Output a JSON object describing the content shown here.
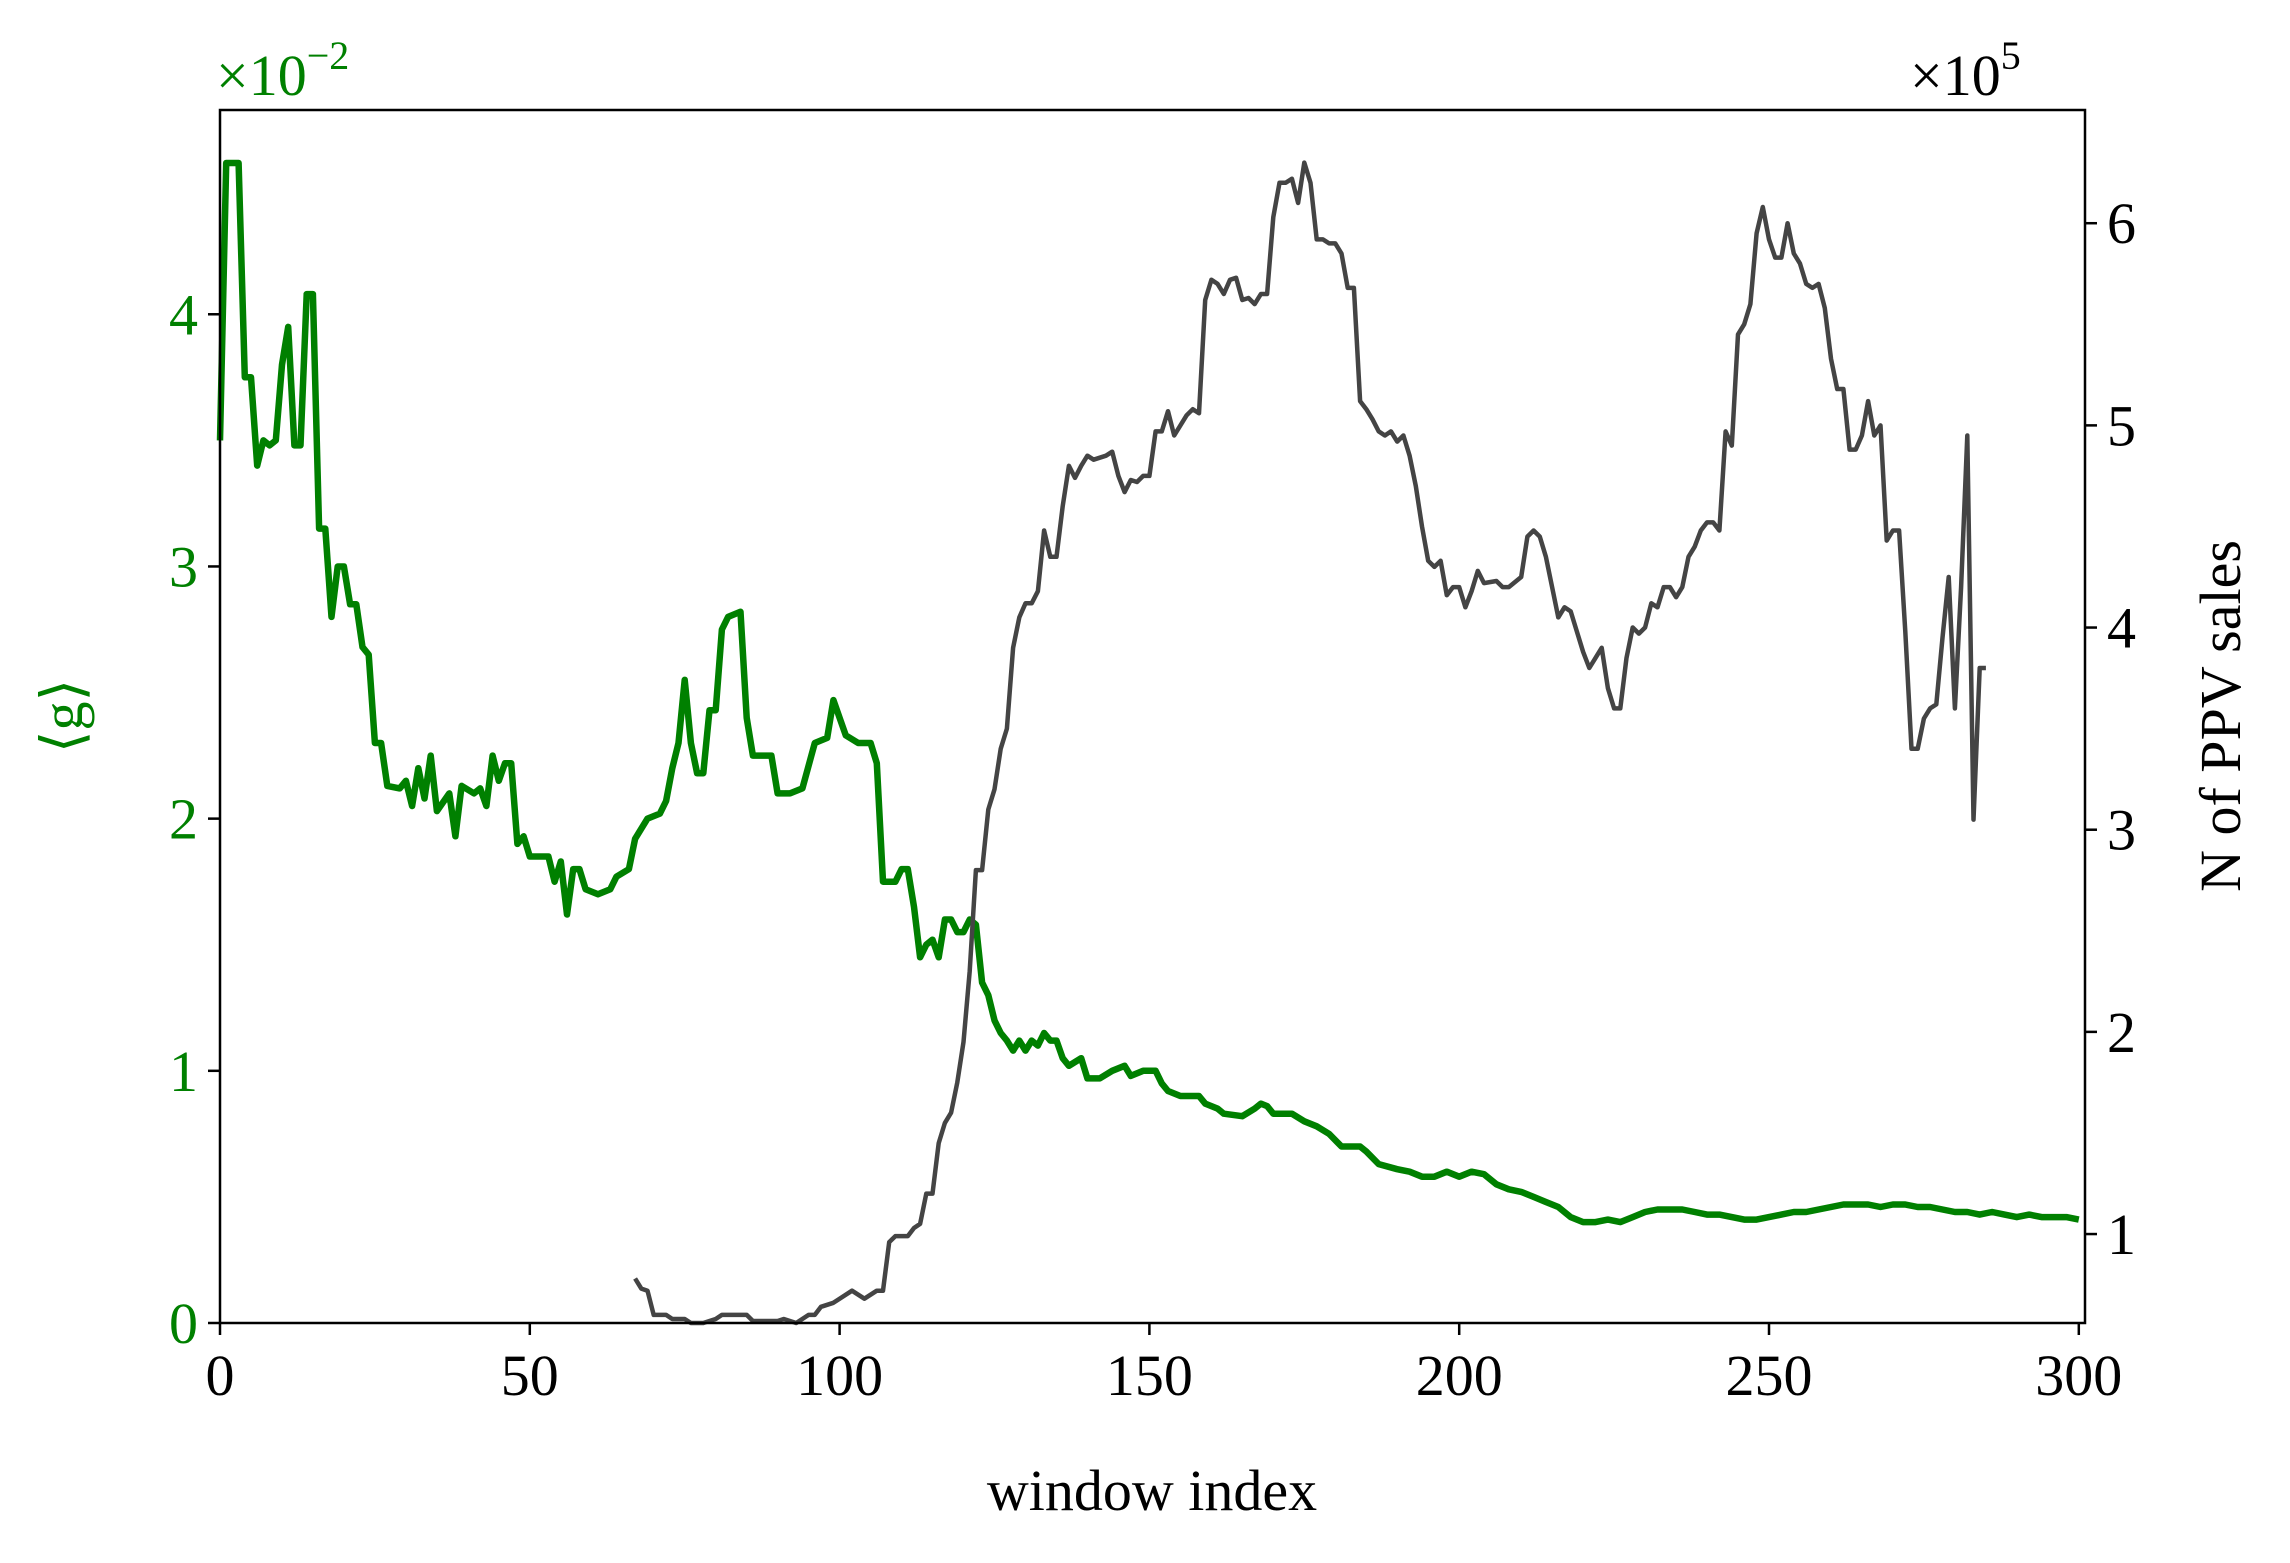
{
  "chart_data": {
    "type": "line",
    "xlabel": "window index",
    "ylabel": "⟨g⟩",
    "y2label": "N of PPV sales",
    "y_offset": {
      "base": "×10",
      "exponent": "−2"
    },
    "y2_offset": {
      "base": "×10",
      "exponent": "5"
    },
    "xlim": [
      0,
      301
    ],
    "xticks": [
      0,
      50,
      100,
      150,
      200,
      250,
      300
    ],
    "ylim": [
      0,
      4.81
    ],
    "yticks": [
      0,
      1,
      2,
      3,
      4
    ],
    "ycolor": "#008000",
    "y2lim": [
      0.56,
      6.56
    ],
    "y2ticks": [
      1,
      2,
      3,
      4,
      5,
      6
    ],
    "series": [
      {
        "color": "#008000",
        "axis": "y",
        "x": [
          0,
          1,
          2,
          3,
          4,
          5,
          6,
          7,
          8,
          9,
          10,
          11,
          12,
          13,
          14,
          15,
          16,
          17,
          18,
          19,
          20,
          21,
          22,
          23,
          24,
          25,
          26,
          27,
          29,
          30,
          31,
          32,
          33,
          34,
          35,
          37,
          38,
          39,
          41,
          42,
          43,
          44,
          45,
          46,
          47,
          48,
          49,
          50,
          53,
          54,
          55,
          56,
          57,
          58,
          59,
          61,
          63,
          64,
          66,
          67,
          69,
          71,
          72,
          73,
          74,
          75,
          76,
          77,
          78,
          79,
          80,
          81,
          82,
          84,
          85,
          86,
          88,
          89,
          90,
          92,
          94,
          96,
          98,
          99,
          100,
          101,
          103,
          105,
          106,
          107,
          108,
          109,
          110,
          111,
          112,
          113,
          114,
          115,
          116,
          117,
          118,
          119,
          120,
          121,
          122,
          123,
          124,
          125,
          126,
          127,
          128,
          129,
          130,
          131,
          132,
          133,
          134,
          135,
          136,
          137,
          139,
          140,
          142,
          144,
          146,
          147,
          149,
          151,
          152,
          153,
          155,
          158,
          159,
          161,
          162,
          165,
          167,
          168,
          169,
          170,
          173,
          175,
          177,
          179,
          181,
          184,
          185,
          187,
          190,
          192,
          194,
          196,
          198,
          200,
          202,
          204,
          206,
          208,
          210,
          212,
          214,
          216,
          218,
          220,
          222,
          224,
          226,
          228,
          230,
          232,
          234,
          236,
          238,
          240,
          242,
          244,
          246,
          248,
          250,
          252,
          254,
          256,
          258,
          260,
          262,
          264,
          266,
          268,
          270,
          272,
          274,
          276,
          278,
          280,
          282,
          284,
          286,
          288,
          290,
          292,
          294,
          296,
          298,
          300
        ],
        "values": [
          3.5,
          4.6,
          4.6,
          4.6,
          3.75,
          3.75,
          3.4,
          3.5,
          3.48,
          3.5,
          3.8,
          3.95,
          3.48,
          3.48,
          4.08,
          4.08,
          3.15,
          3.15,
          2.8,
          3.0,
          3.0,
          2.85,
          2.85,
          2.68,
          2.65,
          2.3,
          2.3,
          2.13,
          2.12,
          2.15,
          2.05,
          2.2,
          2.08,
          2.25,
          2.03,
          2.1,
          1.93,
          2.13,
          2.1,
          2.12,
          2.05,
          2.25,
          2.15,
          2.22,
          2.22,
          1.9,
          1.93,
          1.85,
          1.85,
          1.75,
          1.83,
          1.62,
          1.8,
          1.8,
          1.72,
          1.7,
          1.72,
          1.77,
          1.8,
          1.92,
          2.0,
          2.02,
          2.07,
          2.2,
          2.3,
          2.55,
          2.3,
          2.18,
          2.18,
          2.43,
          2.43,
          2.75,
          2.8,
          2.82,
          2.4,
          2.25,
          2.25,
          2.25,
          2.1,
          2.1,
          2.12,
          2.3,
          2.32,
          2.47,
          2.4,
          2.33,
          2.3,
          2.3,
          2.22,
          1.75,
          1.75,
          1.75,
          1.8,
          1.8,
          1.65,
          1.45,
          1.5,
          1.52,
          1.45,
          1.6,
          1.6,
          1.55,
          1.55,
          1.6,
          1.58,
          1.35,
          1.3,
          1.2,
          1.15,
          1.12,
          1.08,
          1.12,
          1.08,
          1.12,
          1.1,
          1.15,
          1.12,
          1.12,
          1.05,
          1.02,
          1.05,
          0.97,
          0.97,
          1.0,
          1.02,
          0.98,
          1.0,
          1.0,
          0.95,
          0.92,
          0.9,
          0.9,
          0.87,
          0.85,
          0.83,
          0.82,
          0.85,
          0.87,
          0.86,
          0.83,
          0.83,
          0.8,
          0.78,
          0.75,
          0.7,
          0.7,
          0.68,
          0.63,
          0.61,
          0.6,
          0.58,
          0.58,
          0.6,
          0.58,
          0.6,
          0.59,
          0.55,
          0.53,
          0.52,
          0.5,
          0.48,
          0.46,
          0.42,
          0.4,
          0.4,
          0.41,
          0.4,
          0.42,
          0.44,
          0.45,
          0.45,
          0.45,
          0.44,
          0.43,
          0.43,
          0.42,
          0.41,
          0.41,
          0.42,
          0.43,
          0.44,
          0.44,
          0.45,
          0.46,
          0.47,
          0.47,
          0.47,
          0.46,
          0.47,
          0.47,
          0.46,
          0.46,
          0.45,
          0.44,
          0.44,
          0.43,
          0.44,
          0.43,
          0.42,
          0.43,
          0.42,
          0.42,
          0.42,
          0.41
        ]
      },
      {
        "color": "#444444",
        "axis": "y2",
        "x": [
          67,
          68,
          69,
          70,
          72,
          73,
          75,
          76,
          78,
          80,
          81,
          83,
          85,
          86,
          88,
          90,
          91,
          93,
          95,
          96,
          97,
          99,
          100,
          102,
          103,
          104,
          105,
          106,
          107,
          108,
          109,
          111,
          112,
          113,
          114,
          115,
          116,
          117,
          118,
          119,
          120,
          121,
          122,
          123,
          124,
          125,
          126,
          127,
          128,
          129,
          130,
          131,
          132,
          133,
          134,
          135,
          136,
          137,
          138,
          139,
          140,
          141,
          143,
          144,
          145,
          146,
          147,
          148,
          149,
          150,
          151,
          152,
          153,
          154,
          156,
          157,
          158,
          159,
          160,
          161,
          162,
          163,
          164,
          165,
          166,
          167,
          168,
          169,
          170,
          171,
          172,
          173,
          174,
          175,
          176,
          177,
          178,
          179,
          180,
          181,
          182,
          183,
          184,
          185,
          186,
          187,
          188,
          189,
          190,
          191,
          192,
          193,
          194,
          195,
          196,
          197,
          198,
          199,
          200,
          201,
          202,
          203,
          204,
          206,
          207,
          208,
          210,
          211,
          212,
          213,
          214,
          215,
          216,
          217,
          218,
          219,
          220,
          221,
          222,
          223,
          224,
          225,
          226,
          227,
          228,
          229,
          230,
          231,
          232,
          233,
          234,
          235,
          236,
          237,
          238,
          239,
          240,
          241,
          242,
          243,
          244,
          245,
          246,
          247,
          248,
          249,
          250,
          251,
          252,
          253,
          254,
          255,
          256,
          257,
          258,
          259,
          260,
          261,
          262,
          263,
          264,
          265,
          266,
          267,
          268,
          269,
          270,
          271,
          272,
          273,
          274,
          275,
          276,
          277,
          278,
          279,
          280,
          281,
          282,
          283,
          284,
          285
        ],
        "values": [
          0.78,
          0.73,
          0.72,
          0.6,
          0.6,
          0.58,
          0.58,
          0.56,
          0.56,
          0.58,
          0.6,
          0.6,
          0.6,
          0.57,
          0.57,
          0.57,
          0.58,
          0.56,
          0.6,
          0.6,
          0.64,
          0.66,
          0.68,
          0.72,
          0.7,
          0.68,
          0.7,
          0.72,
          0.72,
          0.96,
          0.99,
          0.99,
          1.03,
          1.05,
          1.2,
          1.2,
          1.45,
          1.55,
          1.6,
          1.75,
          1.95,
          2.3,
          2.8,
          2.8,
          3.1,
          3.2,
          3.4,
          3.5,
          3.9,
          4.05,
          4.12,
          4.12,
          4.18,
          4.48,
          4.35,
          4.35,
          4.6,
          4.8,
          4.74,
          4.8,
          4.85,
          4.83,
          4.85,
          4.87,
          4.75,
          4.67,
          4.73,
          4.72,
          4.75,
          4.75,
          4.97,
          4.97,
          5.07,
          4.95,
          5.05,
          5.08,
          5.06,
          5.62,
          5.72,
          5.7,
          5.65,
          5.72,
          5.73,
          5.62,
          5.63,
          5.6,
          5.65,
          5.65,
          6.03,
          6.2,
          6.2,
          6.22,
          6.1,
          6.3,
          6.2,
          5.92,
          5.92,
          5.9,
          5.9,
          5.85,
          5.68,
          5.68,
          5.12,
          5.08,
          5.03,
          4.97,
          4.95,
          4.97,
          4.92,
          4.95,
          4.85,
          4.7,
          4.5,
          4.33,
          4.3,
          4.33,
          4.16,
          4.2,
          4.2,
          4.1,
          4.18,
          4.28,
          4.22,
          4.23,
          4.2,
          4.2,
          4.25,
          4.45,
          4.48,
          4.45,
          4.35,
          4.2,
          4.05,
          4.1,
          4.08,
          3.98,
          3.88,
          3.8,
          3.85,
          3.9,
          3.7,
          3.6,
          3.6,
          3.85,
          4.0,
          3.97,
          4.0,
          4.12,
          4.1,
          4.2,
          4.2,
          4.15,
          4.2,
          4.35,
          4.4,
          4.48,
          4.52,
          4.52,
          4.48,
          4.97,
          4.9,
          5.45,
          5.5,
          5.6,
          5.95,
          6.08,
          5.92,
          5.83,
          5.83,
          6.0,
          5.85,
          5.8,
          5.7,
          5.68,
          5.7,
          5.58,
          5.33,
          5.18,
          5.18,
          4.88,
          4.88,
          4.95,
          5.12,
          4.95,
          5.0,
          4.43,
          4.48,
          4.48,
          3.98,
          3.4,
          3.4,
          3.55,
          3.6,
          3.62,
          3.95,
          4.25,
          3.6,
          4.2,
          4.95,
          3.05,
          3.8,
          3.8
        ]
      }
    ]
  }
}
